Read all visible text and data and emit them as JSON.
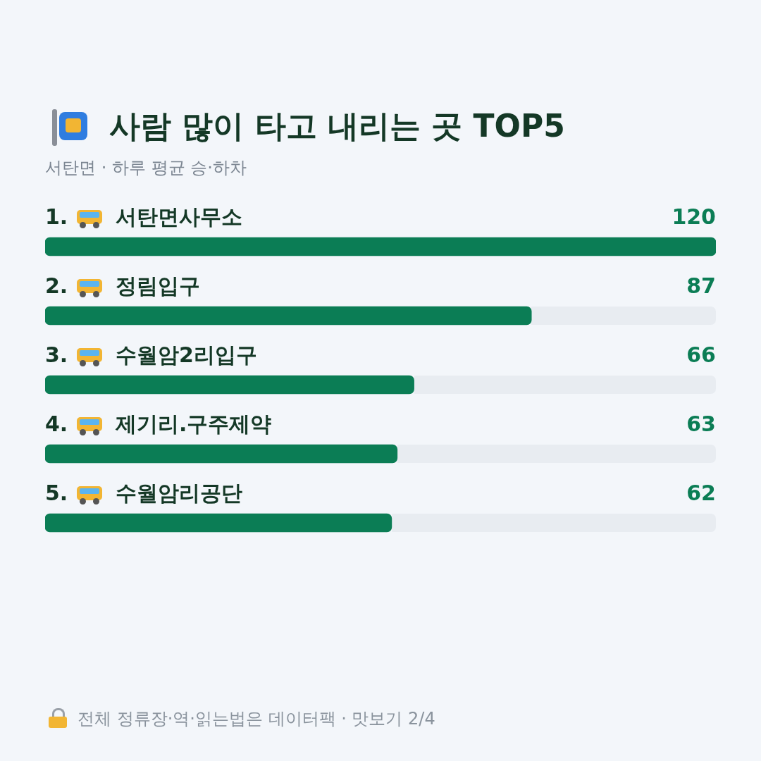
{
  "chart_data": {
    "type": "bar",
    "orientation": "horizontal",
    "title": "사람 많이 타고 내리는 곳 TOP5",
    "subtitle": "서탄면 · 하루 평균 승·하차",
    "categories": [
      "1. 서탄면사무소",
      "2. 정림입구",
      "3. 수월암2리입구",
      "4. 제기리.구주제약",
      "5. 수월암리공단"
    ],
    "values": [
      120,
      87,
      66,
      63,
      62
    ],
    "color": "#0b7d55",
    "data_labels": true,
    "annotations": [
      "전체 정류장·역·읽는법은 데이터팩 · 맛보기 2/4"
    ]
  }
}
